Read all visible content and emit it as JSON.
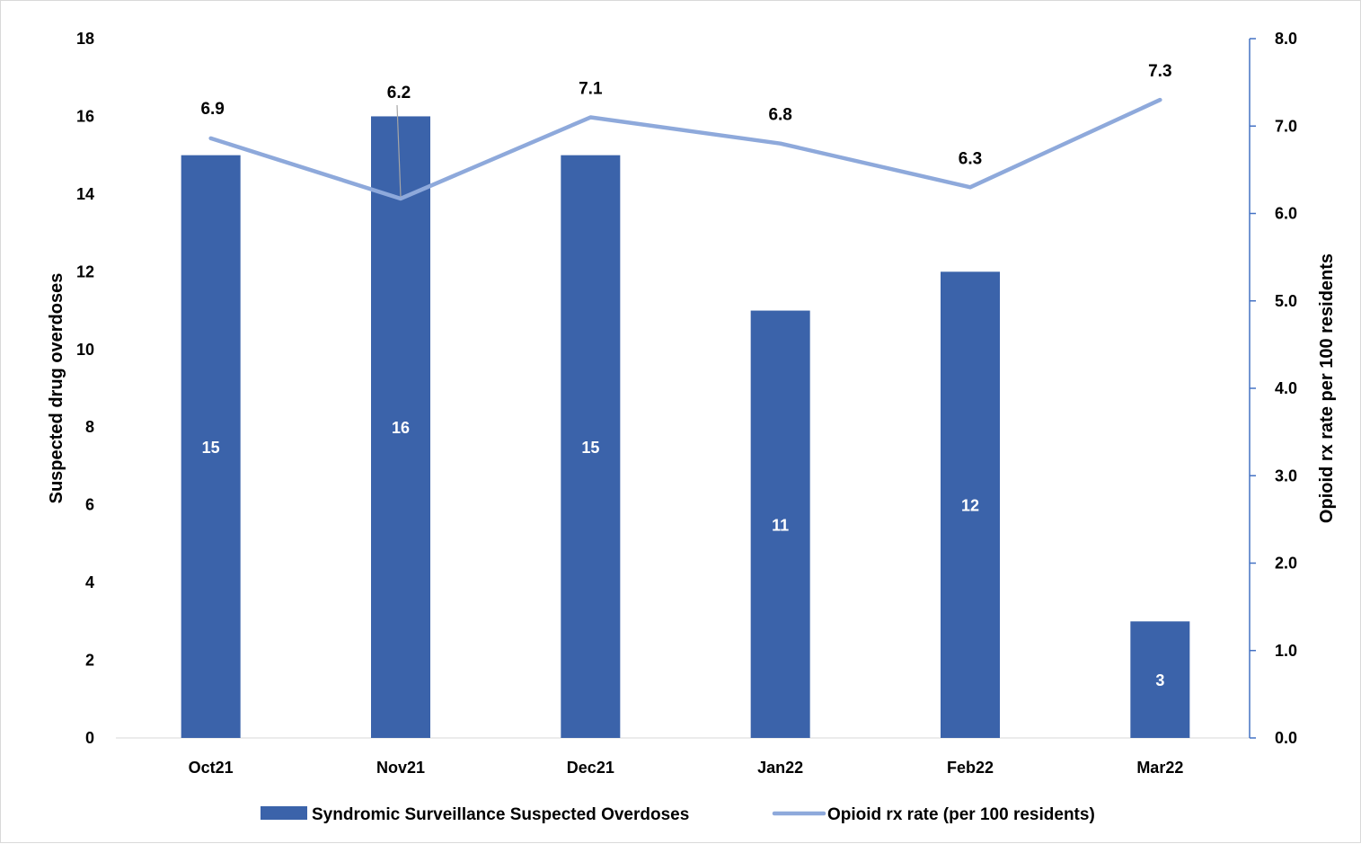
{
  "chart_data": {
    "type": "bar",
    "categories": [
      "Oct21",
      "Nov21",
      "Dec21",
      "Jan22",
      "Feb22",
      "Mar22"
    ],
    "series": [
      {
        "name": "Syndromic Surveillance Suspected Overdoses",
        "type": "bar",
        "axis": "left",
        "color": "#3B63AA",
        "values": [
          15,
          16,
          15,
          11,
          12,
          3
        ],
        "labels": [
          "15",
          "16",
          "15",
          "11",
          "12",
          "3"
        ]
      },
      {
        "name": "Opioid rx rate (per 100 residents)",
        "type": "line",
        "axis": "right",
        "color": "#8EA9DB",
        "values": [
          6.86,
          6.17,
          7.1,
          6.8,
          6.3,
          7.3
        ],
        "labels": [
          "6.9",
          "6.2",
          "7.1",
          "6.8",
          "6.3",
          "7.3"
        ]
      }
    ],
    "y_left": {
      "label": "Suspected drug overdoses",
      "ylim": [
        0,
        18
      ],
      "ticks": [
        "0",
        "2",
        "4",
        "6",
        "8",
        "10",
        "12",
        "14",
        "16",
        "18"
      ]
    },
    "y_right": {
      "label": "Opioid rx rate per 100 residents",
      "ylim": [
        0,
        8
      ],
      "ticks": [
        "0.0",
        "1.0",
        "2.0",
        "3.0",
        "4.0",
        "5.0",
        "6.0",
        "7.0",
        "8.0"
      ]
    },
    "grid": false,
    "legend": "bottom"
  }
}
